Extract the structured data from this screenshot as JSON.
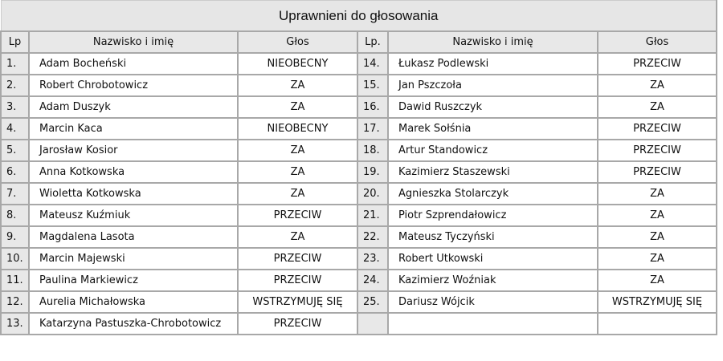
{
  "title": "Uprawnieni do głosowania",
  "headers": {
    "lp": "Lp",
    "lp2": "Lp.",
    "name": "Nazwisko i imię",
    "vote": "Głos"
  },
  "left": [
    {
      "lp": "1.",
      "name": "Adam Bocheński",
      "vote": "NIEOBECNY"
    },
    {
      "lp": "2.",
      "name": "Robert Chrobotowicz",
      "vote": "ZA"
    },
    {
      "lp": "3.",
      "name": "Adam Duszyk",
      "vote": "ZA"
    },
    {
      "lp": "4.",
      "name": "Marcin Kaca",
      "vote": "NIEOBECNY"
    },
    {
      "lp": "5.",
      "name": "Jarosław Kosior",
      "vote": "ZA"
    },
    {
      "lp": "6.",
      "name": "Anna Kotkowska",
      "vote": "ZA"
    },
    {
      "lp": "7.",
      "name": "Wioletta Kotkowska",
      "vote": "ZA"
    },
    {
      "lp": "8.",
      "name": "Mateusz Kuźmiuk",
      "vote": "PRZECIW"
    },
    {
      "lp": "9.",
      "name": "Magdalena Lasota",
      "vote": "ZA"
    },
    {
      "lp": "10.",
      "name": "Marcin Majewski",
      "vote": "PRZECIW"
    },
    {
      "lp": "11.",
      "name": "Paulina Markiewicz",
      "vote": "PRZECIW"
    },
    {
      "lp": "12.",
      "name": "Aurelia Michałowska",
      "vote": "WSTRZYMUJĘ SIĘ"
    },
    {
      "lp": "13.",
      "name": "Katarzyna Pastuszka-Chrobotowicz",
      "vote": "PRZECIW"
    }
  ],
  "right": [
    {
      "lp": "14.",
      "name": "Łukasz Podlewski",
      "vote": "PRZECIW"
    },
    {
      "lp": "15.",
      "name": "Jan Pszczoła",
      "vote": "ZA"
    },
    {
      "lp": "16.",
      "name": "Dawid Ruszczyk",
      "vote": "ZA"
    },
    {
      "lp": "17.",
      "name": "Marek Sołśnia",
      "vote": "PRZECIW"
    },
    {
      "lp": "18.",
      "name": "Artur Standowicz",
      "vote": "PRZECIW"
    },
    {
      "lp": "19.",
      "name": "Kazimierz Staszewski",
      "vote": "PRZECIW"
    },
    {
      "lp": "20.",
      "name": "Agnieszka Stolarczyk",
      "vote": "ZA"
    },
    {
      "lp": "21.",
      "name": "Piotr Szprendałowicz",
      "vote": "ZA"
    },
    {
      "lp": "22.",
      "name": "Mateusz Tyczyński",
      "vote": "ZA"
    },
    {
      "lp": "23.",
      "name": "Robert Utkowski",
      "vote": "ZA"
    },
    {
      "lp": "24.",
      "name": "Kazimierz Woźniak",
      "vote": "ZA"
    },
    {
      "lp": "25.",
      "name": "Dariusz Wójcik",
      "vote": "WSTRZYMUJĘ SIĘ"
    },
    {
      "lp": "",
      "name": "",
      "vote": ""
    }
  ]
}
